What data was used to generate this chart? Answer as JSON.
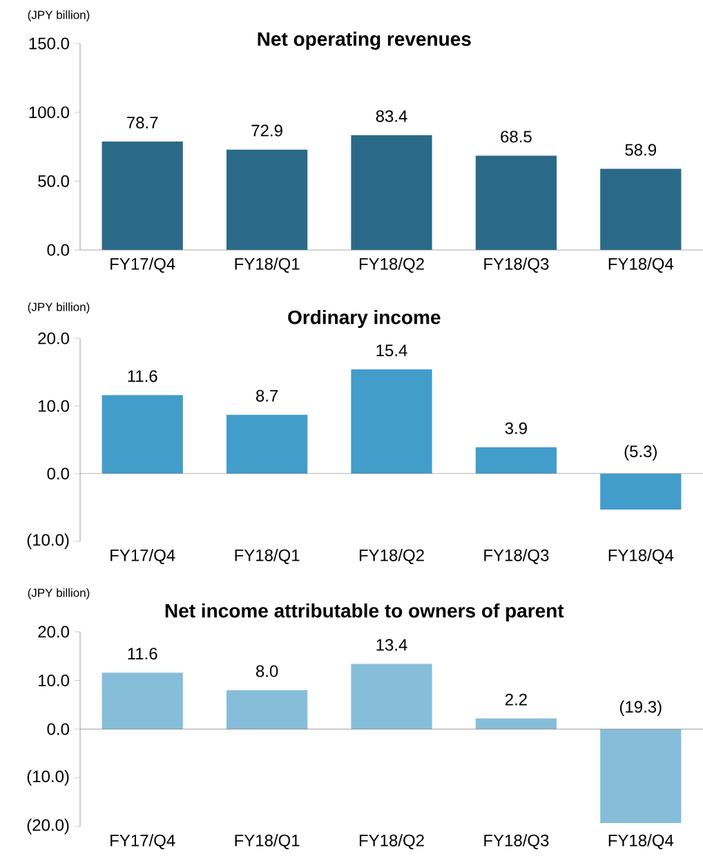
{
  "chart_data": [
    {
      "type": "bar",
      "title": "Net operating revenues",
      "ylabel": "(JPY billion)",
      "categories": [
        "FY17/Q4",
        "FY18/Q1",
        "FY18/Q2",
        "FY18/Q3",
        "FY18/Q4"
      ],
      "values": [
        78.7,
        72.9,
        83.4,
        68.5,
        58.9
      ],
      "color": "#2a6a88",
      "ylim": [
        0,
        150
      ],
      "yticks": [
        {
          "value": 0,
          "label": "0.0"
        },
        {
          "value": 50,
          "label": "50.0"
        },
        {
          "value": 100,
          "label": "100.0"
        },
        {
          "value": 150,
          "label": "150.0"
        }
      ],
      "value_labels": [
        "78.7",
        "72.9",
        "83.4",
        "68.5",
        "58.9"
      ]
    },
    {
      "type": "bar",
      "title": "Ordinary income",
      "ylabel": "(JPY billion)",
      "categories": [
        "FY17/Q4",
        "FY18/Q1",
        "FY18/Q2",
        "FY18/Q3",
        "FY18/Q4"
      ],
      "values": [
        11.6,
        8.7,
        15.4,
        3.9,
        -5.3
      ],
      "color": "#429dcb",
      "ylim": [
        -10,
        20
      ],
      "yticks": [
        {
          "value": -10,
          "label": "(10.0)"
        },
        {
          "value": 0,
          "label": "0.0"
        },
        {
          "value": 10,
          "label": "10.0"
        },
        {
          "value": 20,
          "label": "20.0"
        }
      ],
      "value_labels": [
        "11.6",
        "8.7",
        "15.4",
        "3.9",
        "(5.3)"
      ]
    },
    {
      "type": "bar",
      "title": "Net income attributable to owners of parent",
      "ylabel": "(JPY billion)",
      "categories": [
        "FY17/Q4",
        "FY18/Q1",
        "FY18/Q2",
        "FY18/Q3",
        "FY18/Q4"
      ],
      "values": [
        11.6,
        8.0,
        13.4,
        2.2,
        -19.3
      ],
      "color": "#86bed9",
      "ylim": [
        -20,
        20
      ],
      "yticks": [
        {
          "value": -20,
          "label": "(20.0)"
        },
        {
          "value": -10,
          "label": "(10.0)"
        },
        {
          "value": 0,
          "label": "0.0"
        },
        {
          "value": 10,
          "label": "10.0"
        },
        {
          "value": 20,
          "label": "20.0"
        }
      ],
      "value_labels": [
        "11.6",
        "8.0",
        "13.4",
        "2.2",
        "(19.3)"
      ]
    }
  ]
}
